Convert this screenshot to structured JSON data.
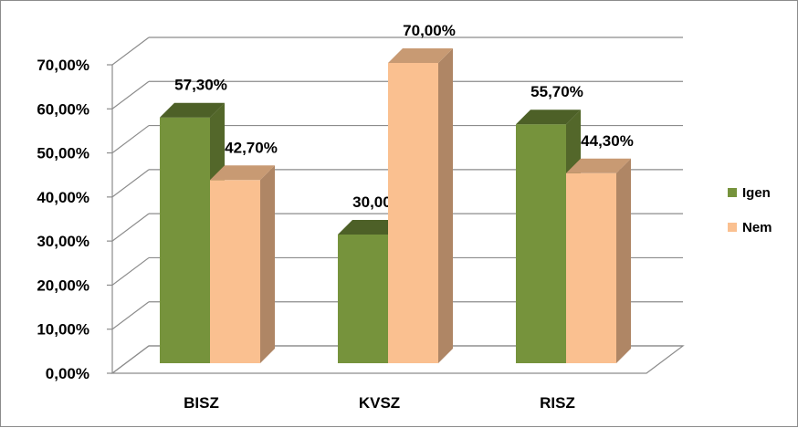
{
  "chart_data": {
    "type": "bar",
    "categories": [
      "BISZ",
      "KVSZ",
      "RISZ"
    ],
    "series": [
      {
        "name": "Igen",
        "values": [
          57.3,
          30.0,
          55.7
        ],
        "labels": [
          "57,30%",
          "30,00%",
          "55,70%"
        ],
        "color": "#76933c"
      },
      {
        "name": "Nem",
        "values": [
          42.7,
          70.0,
          44.3
        ],
        "labels": [
          "42,70%",
          "70,00%",
          "44,30%"
        ],
        "color": "#fac090"
      }
    ],
    "y_ticks": [
      "0,00%",
      "10,00%",
      "20,00%",
      "30,00%",
      "40,00%",
      "50,00%",
      "60,00%",
      "70,00%"
    ],
    "ylim": [
      0,
      70
    ],
    "grid": true,
    "three_d": true,
    "legend_position": "right"
  }
}
